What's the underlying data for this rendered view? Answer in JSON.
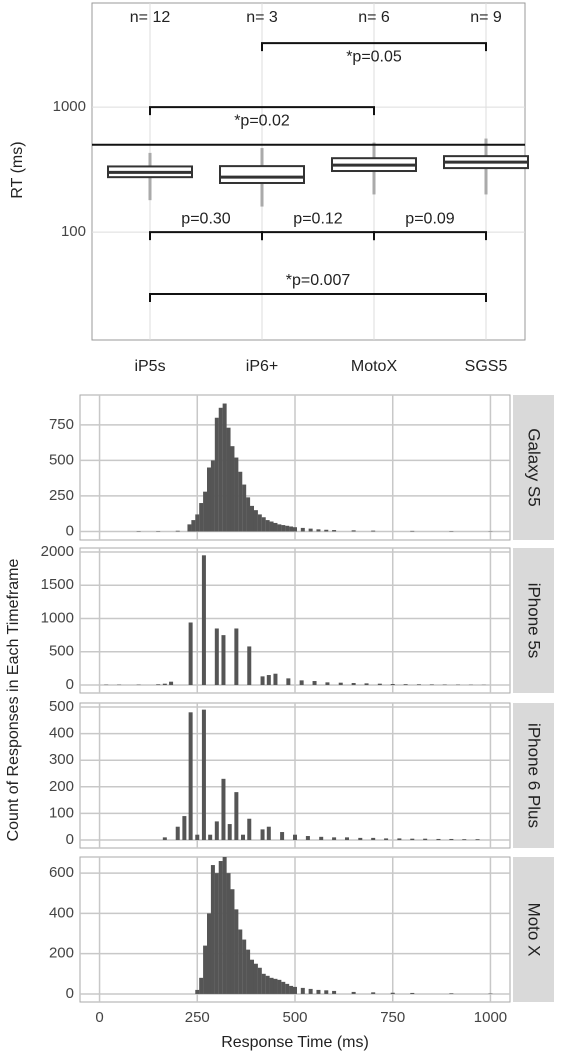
{
  "chart_data": [
    {
      "type": "box",
      "ylabel": "RT (ms)",
      "log_y": true,
      "ylim": [
        13.7,
        6800
      ],
      "yticks": [
        100,
        1000
      ],
      "grid": true,
      "categories": [
        "iP5s",
        "iP6+",
        "MotoX",
        "SGS5"
      ],
      "n_labels": [
        "n= 12",
        "n= 3",
        "n= 6",
        "n= 9"
      ],
      "whislo": [
        180,
        160,
        200,
        200
      ],
      "q1": [
        275,
        247,
        308,
        325
      ],
      "median": [
        300,
        275,
        343,
        363
      ],
      "q3": [
        335,
        337,
        390,
        405
      ],
      "whishi": [
        430,
        470,
        520,
        560
      ],
      "color": "#333333",
      "hline": 500,
      "brackets": [
        {
          "from": 1,
          "to": 3,
          "level": 3250,
          "label": "*p=0.05"
        },
        {
          "from": 0,
          "to": 2,
          "level": 1000,
          "label": "*p=0.02"
        },
        {
          "from": 0,
          "to": 1,
          "level": 100,
          "label": "p=0.30"
        },
        {
          "from": 1,
          "to": 2,
          "level": 100,
          "label": "p=0.12"
        },
        {
          "from": 2,
          "to": 3,
          "level": 100,
          "label": "p=0.09"
        },
        {
          "from": 0,
          "to": 3,
          "level": 32,
          "label": "*p=0.007"
        }
      ]
    },
    {
      "type": "bar",
      "title": "Galaxy S5",
      "color": "#555555",
      "xlim": [
        -50,
        1050
      ],
      "xticks": [
        0,
        250,
        500,
        750,
        1000
      ],
      "ylim": [
        -60,
        960
      ],
      "yticks": [
        0,
        250,
        500,
        750
      ],
      "grid": true,
      "x": [
        100,
        150,
        200,
        230,
        240,
        250,
        260,
        270,
        280,
        290,
        300,
        310,
        320,
        330,
        340,
        350,
        360,
        370,
        380,
        390,
        400,
        410,
        420,
        430,
        440,
        450,
        460,
        470,
        480,
        490,
        500,
        520,
        540,
        560,
        580,
        600,
        650,
        700,
        800,
        900,
        1000
      ],
      "values": [
        3,
        3,
        5,
        50,
        80,
        120,
        200,
        280,
        450,
        500,
        800,
        870,
        900,
        730,
        600,
        520,
        420,
        330,
        240,
        180,
        150,
        120,
        100,
        80,
        70,
        60,
        50,
        45,
        40,
        35,
        30,
        25,
        20,
        15,
        12,
        10,
        8,
        6,
        4,
        3,
        2
      ]
    },
    {
      "type": "bar",
      "title": "iPhone 5s",
      "color": "#555555",
      "xlim": [
        -50,
        1050
      ],
      "xticks": [
        0,
        250,
        500,
        750,
        1000
      ],
      "ylim": [
        -120,
        2060
      ],
      "yticks": [
        0,
        500,
        1000,
        1500,
        2000
      ],
      "grid": true,
      "x": [
        17,
        50,
        100,
        150,
        167,
        183,
        233,
        267,
        300,
        317,
        350,
        383,
        417,
        433,
        450,
        483,
        517,
        550,
        583,
        617,
        650,
        683,
        717,
        750,
        783,
        817,
        850,
        883,
        917,
        950,
        983
      ],
      "values": [
        5,
        5,
        5,
        10,
        20,
        50,
        940,
        1950,
        850,
        750,
        850,
        580,
        130,
        150,
        170,
        100,
        70,
        60,
        40,
        35,
        30,
        25,
        20,
        15,
        12,
        10,
        8,
        6,
        5,
        4,
        3
      ]
    },
    {
      "type": "bar",
      "title": "iPhone 6 Plus",
      "color": "#555555",
      "xlim": [
        -50,
        1050
      ],
      "xticks": [
        0,
        250,
        500,
        750,
        1000
      ],
      "ylim": [
        -30,
        515
      ],
      "yticks": [
        0,
        100,
        200,
        300,
        400,
        500
      ],
      "grid": true,
      "x": [
        167,
        200,
        217,
        233,
        250,
        267,
        283,
        300,
        317,
        333,
        350,
        367,
        383,
        417,
        433,
        467,
        500,
        533,
        567,
        600,
        633,
        667,
        700,
        733,
        767,
        800,
        833,
        867,
        900,
        933,
        967
      ],
      "values": [
        10,
        50,
        90,
        480,
        20,
        490,
        20,
        70,
        230,
        60,
        180,
        20,
        80,
        40,
        50,
        30,
        20,
        15,
        12,
        10,
        10,
        8,
        8,
        6,
        6,
        5,
        5,
        4,
        4,
        3,
        3
      ]
    },
    {
      "type": "bar",
      "title": "Moto X",
      "color": "#555555",
      "xlim": [
        -50,
        1050
      ],
      "xticks": [
        0,
        250,
        500,
        750,
        1000
      ],
      "ylim": [
        -40,
        680
      ],
      "yticks": [
        0,
        200,
        400,
        600
      ],
      "grid": true,
      "x": [
        250,
        260,
        270,
        280,
        290,
        300,
        310,
        320,
        330,
        340,
        350,
        360,
        370,
        380,
        390,
        400,
        410,
        420,
        430,
        440,
        450,
        460,
        470,
        480,
        490,
        500,
        520,
        540,
        560,
        580,
        600,
        650,
        700,
        750,
        800,
        900,
        1000
      ],
      "values": [
        20,
        80,
        240,
        400,
        640,
        600,
        660,
        680,
        600,
        520,
        420,
        320,
        270,
        220,
        170,
        150,
        130,
        100,
        90,
        80,
        75,
        70,
        60,
        50,
        40,
        35,
        30,
        25,
        20,
        18,
        15,
        10,
        8,
        6,
        5,
        3,
        2
      ]
    }
  ],
  "shared": {
    "ylabel": "Count of Responses in Each Timeframe",
    "xlabel": "Response Time (ms)"
  }
}
